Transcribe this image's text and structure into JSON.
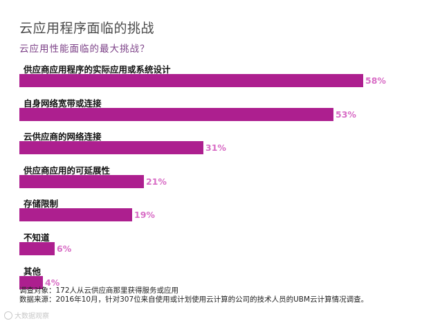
{
  "chart_data": {
    "type": "bar",
    "orientation": "horizontal",
    "title": "云应用程序面临的挑战",
    "subtitle": "云应用性能面临的最大挑战？",
    "categories": [
      "供应商应用程序的实际应用或系统设计",
      "自身网络宽带或连接",
      "云供应商的网络连接",
      "供应商应用的可延展性",
      "存储限制",
      "不知道",
      "其他"
    ],
    "values": [
      58,
      53,
      31,
      21,
      19,
      6,
      4
    ],
    "value_labels": [
      "58%",
      "53%",
      "31%",
      "21%",
      "19%",
      "6%",
      "4%"
    ],
    "unit": "%",
    "color": "#ad1f8f",
    "xlim": [
      0,
      58
    ]
  },
  "footer": {
    "line1": "调查对象：172人从云供应商那里获得服务或应用",
    "line2": "数据来源：2016年10月，针对307位来自使用或计划使用云计算的公司的技术人员的UBM云计算情况调查。"
  },
  "watermark": "大数据观察"
}
